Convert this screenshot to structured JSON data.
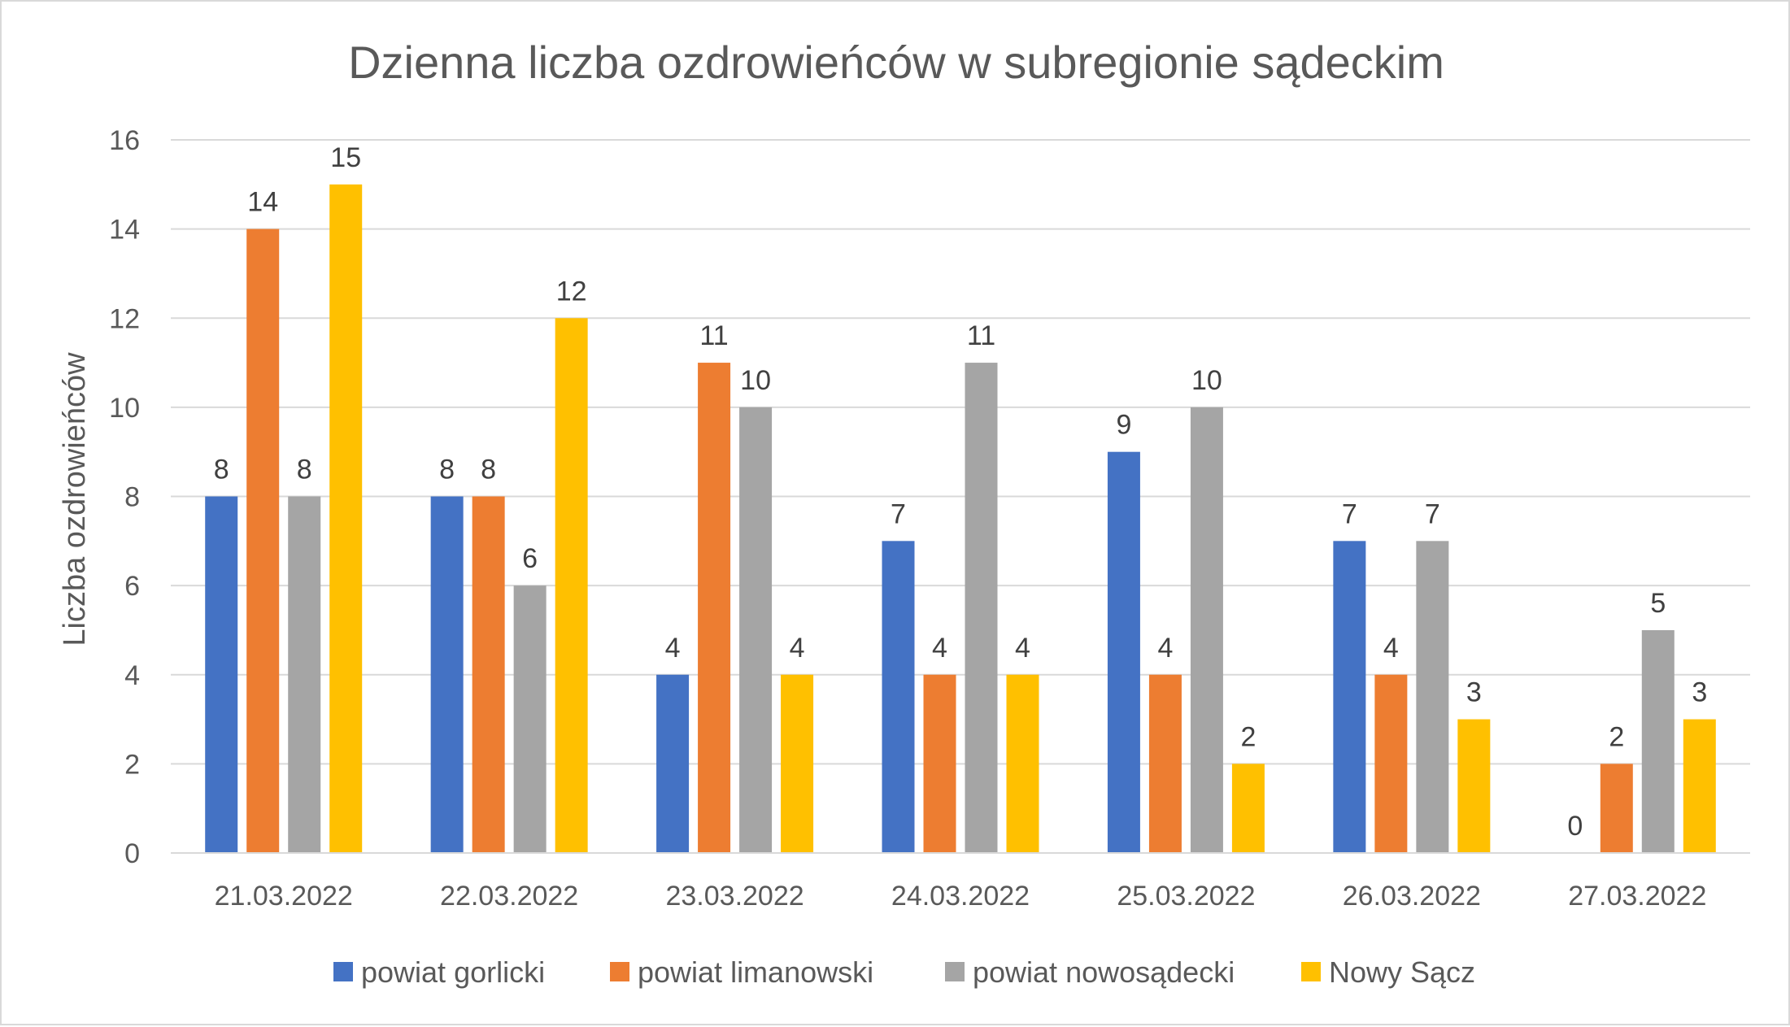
{
  "chart_data": {
    "type": "bar",
    "title": "Dzienna liczba ozdrowieńców w subregionie sądeckim",
    "xlabel": "",
    "ylabel": "Liczba ozdrowieńców",
    "ylim": [
      0,
      16
    ],
    "y_ticks": [
      0,
      2,
      4,
      6,
      8,
      10,
      12,
      14,
      16
    ],
    "grid": true,
    "legend_position": "bottom",
    "categories": [
      "21.03.2022",
      "22.03.2022",
      "23.03.2022",
      "24.03.2022",
      "25.03.2022",
      "26.03.2022",
      "27.03.2022"
    ],
    "series": [
      {
        "name": "powiat gorlicki",
        "color": "#4472c4",
        "values": [
          8,
          8,
          4,
          7,
          9,
          7,
          0
        ]
      },
      {
        "name": "powiat limanowski",
        "color": "#ed7d31",
        "values": [
          14,
          8,
          11,
          4,
          4,
          4,
          2
        ]
      },
      {
        "name": "powiat nowosądecki",
        "color": "#a5a5a5",
        "values": [
          8,
          6,
          10,
          11,
          10,
          7,
          5
        ]
      },
      {
        "name": "Nowy Sącz",
        "color": "#ffc000",
        "values": [
          15,
          12,
          4,
          4,
          2,
          3,
          3
        ]
      }
    ]
  }
}
